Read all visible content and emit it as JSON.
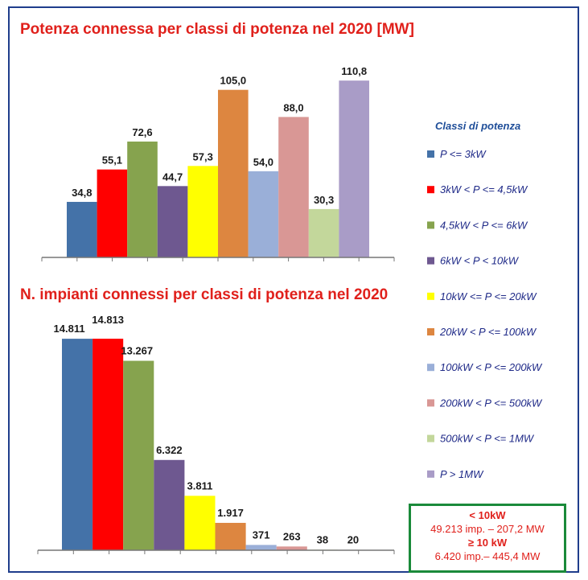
{
  "chart_data": [
    {
      "type": "bar",
      "title": "Potenza connessa per classi di potenza nel 2020 [MW]",
      "categories": [
        "P <= 3kW",
        "3kW < P <= 4,5kW",
        "4,5kW < P <= 6kW",
        "6kW < P < 10kW",
        "10kW <= P <= 20kW",
        "20kW < P <= 100kW",
        "100kW < P <= 200kW",
        "200kW < P <= 500kW",
        "500kW < P <= 1MW",
        "P > 1MW"
      ],
      "values": [
        34.8,
        55.1,
        72.6,
        44.7,
        57.3,
        105.0,
        54.0,
        88.0,
        30.3,
        110.8
      ],
      "value_labels": [
        "34,8",
        "55,1",
        "72,6",
        "44,7",
        "57,3",
        "105,0",
        "54,0",
        "88,0",
        "30,3",
        "110,8"
      ],
      "ylim": [
        0,
        125
      ],
      "grid": false
    },
    {
      "type": "bar",
      "title": "N. impianti connessi per classi di potenza nel 2020",
      "categories": [
        "P <= 3kW",
        "3kW < P <= 4,5kW",
        "4,5kW < P <= 6kW",
        "6kW < P < 10kW",
        "10kW <= P <= 20kW",
        "20kW < P <= 100kW",
        "100kW < P <= 200kW",
        "200kW < P <= 500kW",
        "500kW < P <= 1MW",
        "P > 1MW"
      ],
      "values": [
        14811,
        14813,
        13267,
        6322,
        3811,
        1917,
        371,
        263,
        38,
        20
      ],
      "value_labels": [
        "14.811",
        "14.813",
        "13.267",
        "6.322",
        "3.811",
        "1.917",
        "371",
        "263",
        "38",
        "20"
      ],
      "ylim": [
        0,
        16000
      ],
      "grid": false
    }
  ],
  "legend": {
    "title": "Classi di potenza",
    "placement": "right",
    "items": [
      {
        "label": "P <= 3kW",
        "color": "#4472a8"
      },
      {
        "label": "3kW < P <= 4,5kW",
        "color": "#ff0000"
      },
      {
        "label": "4,5kW < P <= 6kW",
        "color": "#86a34e"
      },
      {
        "label": "6kW < P < 10kW",
        "color": "#6e5890"
      },
      {
        "label": "10kW <= P <= 20kW",
        "color": "#ffff00"
      },
      {
        "label": "20kW < P <= 100kW",
        "color": "#dd8640"
      },
      {
        "label": "100kW < P <= 200kW",
        "color": "#9aafd8"
      },
      {
        "label": "200kW < P <= 500kW",
        "color": "#d99795"
      },
      {
        "label": "500kW < P <= 1MW",
        "color": "#c3d79b"
      },
      {
        "label": "P > 1MW",
        "color": "#a99cc7"
      }
    ]
  },
  "summary": {
    "line1": "< 10kW",
    "line2": "49.213 imp. – 207,2 MW",
    "line3": "≥ 10 kW",
    "line4": "6.420 imp.– 445,4 MW"
  }
}
